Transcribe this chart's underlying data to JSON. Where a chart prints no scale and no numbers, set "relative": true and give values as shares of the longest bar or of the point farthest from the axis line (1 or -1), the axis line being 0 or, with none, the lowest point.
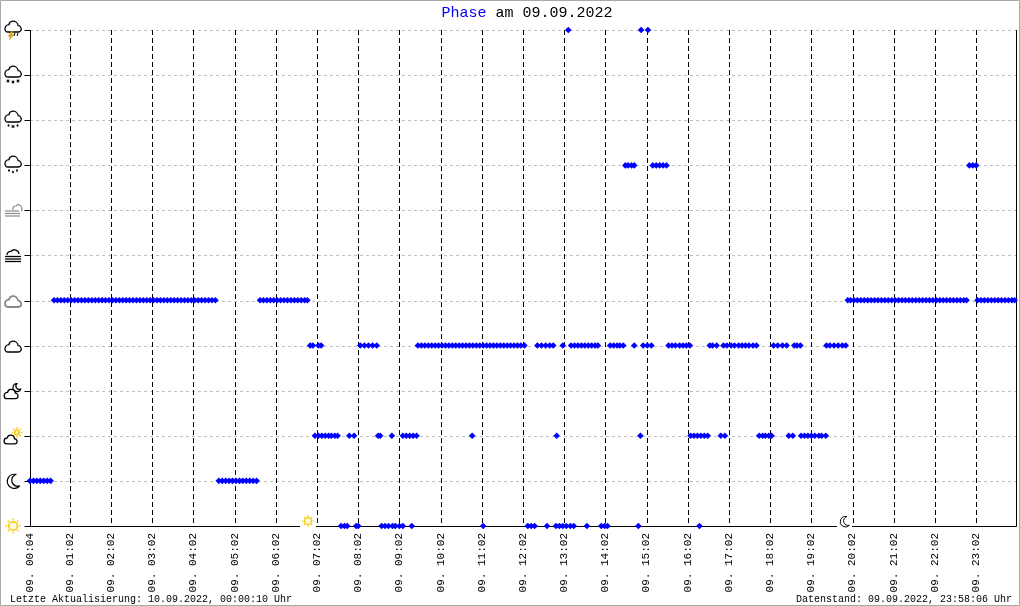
{
  "chart_data": {
    "type": "scatter",
    "title": "am 09.09.2022",
    "relative": true,
    "series": [
      {
        "name": "Phase",
        "color": "#0000ff",
        "x": [
          "2022-09-09T00:04",
          "2022-09-09T00:09",
          "2022-09-09T00:14",
          "2022-09-09T00:19",
          "2022-09-09T00:24",
          "2022-09-09T00:29",
          "2022-09-09T00:34",
          "2022-09-09T00:39",
          "2022-09-09T00:44",
          "2022-09-09T00:49",
          "2022-09-09T00:54",
          "2022-09-09T00:59",
          "2022-09-09T01:04",
          "2022-09-09T01:09",
          "2022-09-09T01:14",
          "2022-09-09T01:19",
          "2022-09-09T01:24",
          "2022-09-09T01:29",
          "2022-09-09T01:34",
          "2022-09-09T01:39",
          "2022-09-09T01:44",
          "2022-09-09T01:49",
          "2022-09-09T01:54",
          "2022-09-09T01:59",
          "2022-09-09T02:04",
          "2022-09-09T02:09",
          "2022-09-09T02:14",
          "2022-09-09T02:19",
          "2022-09-09T02:24",
          "2022-09-09T02:29",
          "2022-09-09T02:34",
          "2022-09-09T02:39",
          "2022-09-09T02:44",
          "2022-09-09T02:49",
          "2022-09-09T02:54",
          "2022-09-09T02:59",
          "2022-09-09T03:04",
          "2022-09-09T03:09",
          "2022-09-09T03:14",
          "2022-09-09T03:19",
          "2022-09-09T03:24",
          "2022-09-09T03:29",
          "2022-09-09T03:34",
          "2022-09-09T03:39",
          "2022-09-09T03:44",
          "2022-09-09T03:49",
          "2022-09-09T03:54",
          "2022-09-09T03:59",
          "2022-09-09T04:04",
          "2022-09-09T04:09",
          "2022-09-09T04:14",
          "2022-09-09T04:19",
          "2022-09-09T04:24",
          "2022-09-09T04:29",
          "2022-09-09T04:34",
          "2022-09-09T04:39",
          "2022-09-09T04:44",
          "2022-09-09T04:49",
          "2022-09-09T04:54",
          "2022-09-09T04:59",
          "2022-09-09T05:04",
          "2022-09-09T05:09",
          "2022-09-09T05:14",
          "2022-09-09T05:19",
          "2022-09-09T05:24",
          "2022-09-09T05:29",
          "2022-09-09T05:34",
          "2022-09-09T05:39",
          "2022-09-09T05:44",
          "2022-09-09T05:49",
          "2022-09-09T05:54",
          "2022-09-09T05:59",
          "2022-09-09T06:04",
          "2022-09-09T06:09",
          "2022-09-09T06:14",
          "2022-09-09T06:19",
          "2022-09-09T06:24",
          "2022-09-09T06:29",
          "2022-09-09T06:34",
          "2022-09-09T06:39",
          "2022-09-09T06:44",
          "2022-09-09T06:48",
          "2022-09-09T06:52",
          "2022-09-09T06:56",
          "2022-09-09T07:04",
          "2022-09-09T07:08",
          "2022-09-09T06:59",
          "2022-09-09T07:04",
          "2022-09-09T07:09",
          "2022-09-09T07:14",
          "2022-09-09T07:19",
          "2022-09-09T07:23",
          "2022-09-09T07:28",
          "2022-09-09T07:32",
          "2022-09-09T07:37",
          "2022-09-09T07:42",
          "2022-09-09T07:46",
          "2022-09-09T07:49",
          "2022-09-09T07:56",
          "2022-09-09T07:59",
          "2022-09-09T08:02",
          "2022-09-09T08:05",
          "2022-09-09T08:11",
          "2022-09-09T08:17",
          "2022-09-09T08:23",
          "2022-09-09T08:29",
          "2022-09-09T08:31",
          "2022-09-09T08:34",
          "2022-09-09T08:36",
          "2022-09-09T08:41",
          "2022-09-09T08:46",
          "2022-09-09T08:52",
          "2022-09-09T08:56",
          "2022-09-09T09:02",
          "2022-09-09T09:07",
          "2022-09-09T08:51",
          "2022-09-09T09:07",
          "2022-09-09T09:12",
          "2022-09-09T09:17",
          "2022-09-09T09:22",
          "2022-09-09T09:27",
          "2022-09-09T09:20",
          "2022-09-09T09:29",
          "2022-09-09T09:34",
          "2022-09-09T09:39",
          "2022-09-09T09:44",
          "2022-09-09T09:49",
          "2022-09-09T09:54",
          "2022-09-09T09:59",
          "2022-09-09T10:04",
          "2022-09-09T10:09",
          "2022-09-09T10:14",
          "2022-09-09T10:19",
          "2022-09-09T10:24",
          "2022-09-09T10:29",
          "2022-09-09T10:34",
          "2022-09-09T10:39",
          "2022-09-09T10:44",
          "2022-09-09T10:49",
          "2022-09-09T10:54",
          "2022-09-09T10:59",
          "2022-09-09T11:04",
          "2022-09-09T11:09",
          "2022-09-09T11:14",
          "2022-09-09T11:19",
          "2022-09-09T11:24",
          "2022-09-09T11:29",
          "2022-09-09T11:34",
          "2022-09-09T11:39",
          "2022-09-09T11:44",
          "2022-09-09T11:49",
          "2022-09-09T11:54",
          "2022-09-09T11:59",
          "2022-09-09T12:04",
          "2022-09-09T10:48",
          "2022-09-09T11:04",
          "2022-09-09T12:09",
          "2022-09-09T12:14",
          "2022-09-09T12:19",
          "2022-09-09T12:23",
          "2022-09-09T12:29",
          "2022-09-09T12:35",
          "2022-09-09T12:41",
          "2022-09-09T12:46",
          "2022-09-09T12:37",
          "2022-09-09T12:51",
          "2022-09-09T12:50",
          "2022-09-09T12:55",
          "2022-09-09T13:00",
          "2022-09-09T13:05",
          "2022-09-09T13:11",
          "2022-09-09T13:16",
          "2022-09-09T13:00",
          "2022-09-09T13:08",
          "2022-09-09T13:12",
          "2022-09-09T13:17",
          "2022-09-09T13:22",
          "2022-09-09T13:27",
          "2022-09-09T13:32",
          "2022-09-09T13:37",
          "2022-09-09T13:42",
          "2022-09-09T13:47",
          "2022-09-09T13:51",
          "2022-09-09T13:35",
          "2022-09-09T13:56",
          "2022-09-09T14:01",
          "2022-09-09T14:05",
          "2022-09-09T14:09",
          "2022-09-09T14:14",
          "2022-09-09T14:19",
          "2022-09-09T14:23",
          "2022-09-09T14:28",
          "2022-09-09T14:31",
          "2022-09-09T14:35",
          "2022-09-09T14:40",
          "2022-09-09T14:44",
          "2022-09-09T14:44",
          "2022-09-09T14:50",
          "2022-09-09T14:53",
          "2022-09-09T14:54",
          "2022-09-09T15:04",
          "2022-09-09T14:57",
          "2022-09-09T15:03",
          "2022-09-09T15:09",
          "2022-09-09T15:11",
          "2022-09-09T15:16",
          "2022-09-09T15:21",
          "2022-09-09T15:26",
          "2022-09-09T15:31",
          "2022-09-09T15:34",
          "2022-09-09T15:39",
          "2022-09-09T15:44",
          "2022-09-09T15:50",
          "2022-09-09T15:55",
          "2022-09-09T16:00",
          "2022-09-09T16:05",
          "2022-09-09T16:06",
          "2022-09-09T16:11",
          "2022-09-09T16:16",
          "2022-09-09T16:21",
          "2022-09-09T16:26",
          "2022-09-09T16:31",
          "2022-09-09T16:19",
          "2022-09-09T16:34",
          "2022-09-09T16:38",
          "2022-09-09T16:44",
          "2022-09-09T16:50",
          "2022-09-09T16:56",
          "2022-09-09T16:54",
          "2022-09-09T16:59",
          "2022-09-09T17:05",
          "2022-09-09T17:10",
          "2022-09-09T17:16",
          "2022-09-09T17:21",
          "2022-09-09T17:26",
          "2022-09-09T17:31",
          "2022-09-09T17:37",
          "2022-09-09T17:42",
          "2022-09-09T17:46",
          "2022-09-09T17:51",
          "2022-09-09T17:55",
          "2022-09-09T18:00",
          "2022-09-09T18:04",
          "2022-09-09T18:07",
          "2022-09-09T18:13",
          "2022-09-09T18:20",
          "2022-09-09T18:26",
          "2022-09-09T18:29",
          "2022-09-09T18:35",
          "2022-09-09T18:37",
          "2022-09-09T18:41",
          "2022-09-09T18:46",
          "2022-09-09T18:47",
          "2022-09-09T18:52",
          "2022-09-09T18:57",
          "2022-09-09T19:02",
          "2022-09-09T19:07",
          "2022-09-09T19:13",
          "2022-09-09T19:17",
          "2022-09-09T19:23",
          "2022-09-09T19:24",
          "2022-09-09T19:29",
          "2022-09-09T19:35",
          "2022-09-09T19:41",
          "2022-09-09T19:47",
          "2022-09-09T19:52",
          "2022-09-09T19:55",
          "2022-09-09T19:59",
          "2022-09-09T20:04",
          "2022-09-09T20:09",
          "2022-09-09T20:14",
          "2022-09-09T20:19",
          "2022-09-09T20:24",
          "2022-09-09T20:29",
          "2022-09-09T20:34",
          "2022-09-09T20:39",
          "2022-09-09T20:44",
          "2022-09-09T20:49",
          "2022-09-09T20:54",
          "2022-09-09T20:59",
          "2022-09-09T21:04",
          "2022-09-09T21:09",
          "2022-09-09T21:14",
          "2022-09-09T21:19",
          "2022-09-09T21:24",
          "2022-09-09T21:29",
          "2022-09-09T21:34",
          "2022-09-09T21:39",
          "2022-09-09T21:44",
          "2022-09-09T21:49",
          "2022-09-09T21:54",
          "2022-09-09T21:59",
          "2022-09-09T22:04",
          "2022-09-09T22:09",
          "2022-09-09T22:14",
          "2022-09-09T22:19",
          "2022-09-09T22:24",
          "2022-09-09T22:29",
          "2022-09-09T22:34",
          "2022-09-09T22:39",
          "2022-09-09T22:44",
          "2022-09-09T22:48",
          "2022-09-09T22:52",
          "2022-09-09T22:57",
          "2022-09-09T23:02",
          "2022-09-09T23:04",
          "2022-09-09T23:09",
          "2022-09-09T23:14",
          "2022-09-09T23:19",
          "2022-09-09T23:24",
          "2022-09-09T23:29",
          "2022-09-09T23:34",
          "2022-09-09T23:39",
          "2022-09-09T23:44",
          "2022-09-09T23:49",
          "2022-09-09T23:54",
          "2022-09-09T23:58"
        ],
        "values": [
          0.091,
          0.091,
          0.091,
          0.091,
          0.091,
          0.091,
          0.091,
          0.455,
          0.455,
          0.455,
          0.455,
          0.455,
          0.455,
          0.455,
          0.455,
          0.455,
          0.455,
          0.455,
          0.455,
          0.455,
          0.455,
          0.455,
          0.455,
          0.455,
          0.455,
          0.455,
          0.455,
          0.455,
          0.455,
          0.455,
          0.455,
          0.455,
          0.455,
          0.455,
          0.455,
          0.455,
          0.455,
          0.455,
          0.455,
          0.455,
          0.455,
          0.455,
          0.455,
          0.455,
          0.455,
          0.455,
          0.455,
          0.455,
          0.455,
          0.455,
          0.455,
          0.455,
          0.455,
          0.455,
          0.455,
          0.091,
          0.091,
          0.091,
          0.091,
          0.091,
          0.091,
          0.091,
          0.091,
          0.091,
          0.091,
          0.091,
          0.091,
          0.455,
          0.455,
          0.455,
          0.455,
          0.455,
          0.455,
          0.455,
          0.455,
          0.455,
          0.455,
          0.455,
          0.455,
          0.455,
          0.455,
          0.455,
          0.364,
          0.364,
          0.364,
          0.364,
          0.182,
          0.182,
          0.182,
          0.182,
          0.182,
          0.182,
          0.182,
          0.182,
          0,
          0,
          0,
          0.182,
          0.182,
          0,
          0,
          0.364,
          0.364,
          0.364,
          0.364,
          0.364,
          0.182,
          0.182,
          0,
          0,
          0,
          0,
          0,
          0,
          0,
          0.182,
          0.182,
          0.182,
          0.182,
          0.182,
          0.182,
          0,
          0.364,
          0.364,
          0.364,
          0.364,
          0.364,
          0.364,
          0.364,
          0.364,
          0.364,
          0.364,
          0.364,
          0.364,
          0.364,
          0.364,
          0.364,
          0.364,
          0.364,
          0.364,
          0.364,
          0.364,
          0.364,
          0.364,
          0.364,
          0.364,
          0.364,
          0.364,
          0.364,
          0.364,
          0.364,
          0.364,
          0.364,
          0.364,
          0.182,
          0,
          0,
          0,
          0,
          0.364,
          0.364,
          0.364,
          0.364,
          0.364,
          0,
          0.182,
          0,
          0,
          0,
          0,
          0,
          0,
          0.364,
          1,
          0.364,
          0.364,
          0.364,
          0.364,
          0.364,
          0.364,
          0.364,
          0.364,
          0.364,
          0,
          0,
          0,
          0,
          0.364,
          0.364,
          0.364,
          0.364,
          0.364,
          0.727,
          0.727,
          0.727,
          0.727,
          0.364,
          0,
          0.182,
          1,
          1,
          0.364,
          0.364,
          0.364,
          0.727,
          0.727,
          0.727,
          0.727,
          0.727,
          0.364,
          0.364,
          0.364,
          0.364,
          0.364,
          0.364,
          0.364,
          0.182,
          0.182,
          0.182,
          0.182,
          0.182,
          0.182,
          0,
          0.364,
          0.364,
          0.364,
          0.182,
          0.182,
          0.364,
          0.364,
          0.364,
          0.364,
          0.364,
          0.364,
          0.364,
          0.364,
          0.364,
          0.364,
          0.182,
          0.182,
          0.182,
          0.182,
          0.182,
          0.364,
          0.364,
          0.364,
          0.364,
          0.182,
          0.182,
          0.364,
          0.364,
          0.364,
          0.182,
          0.182,
          0.182,
          0.182,
          0.182,
          0.182,
          0.182,
          0.182,
          0.364,
          0.364,
          0.364,
          0.364,
          0.364,
          0.364,
          0.455,
          0.455,
          0.455,
          0.455,
          0.455,
          0.455,
          0.455,
          0.455,
          0.455,
          0.455,
          0.455,
          0.455,
          0.455,
          0.455,
          0.455,
          0.455,
          0.455,
          0.455,
          0.455,
          0.455,
          0.455,
          0.455,
          0.455,
          0.455,
          0.455,
          0.455,
          0.455,
          0.455,
          0.455,
          0.455,
          0.455,
          0.455,
          0.455,
          0.455,
          0.455,
          0.455,
          0.727,
          0.727,
          0.727,
          0.455,
          0.455,
          0.455,
          0.455,
          0.455,
          0.455,
          0.455,
          0.455,
          0.455,
          0.455,
          0.455,
          0.455
        ]
      }
    ],
    "xlim": [
      "2022-09-09T00:04",
      "2022-09-10T00:00"
    ],
    "xticks": [
      {
        "value": "2022-09-09T00:04",
        "label": "09. 00:04"
      },
      {
        "value": "2022-09-09T01:02",
        "label": "09. 01:02"
      },
      {
        "value": "2022-09-09T02:02",
        "label": "09. 02:02"
      },
      {
        "value": "2022-09-09T03:02",
        "label": "09. 03:02"
      },
      {
        "value": "2022-09-09T04:02",
        "label": "09. 04:02"
      },
      {
        "value": "2022-09-09T05:02",
        "label": "09. 05:02"
      },
      {
        "value": "2022-09-09T06:02",
        "label": "09. 06:02"
      },
      {
        "value": "2022-09-09T07:02",
        "label": "09. 07:02"
      },
      {
        "value": "2022-09-09T08:02",
        "label": "09. 08:02"
      },
      {
        "value": "2022-09-09T09:02",
        "label": "09. 09:02"
      },
      {
        "value": "2022-09-09T10:02",
        "label": "09. 10:02"
      },
      {
        "value": "2022-09-09T11:02",
        "label": "09. 11:02"
      },
      {
        "value": "2022-09-09T12:02",
        "label": "09. 12:02"
      },
      {
        "value": "2022-09-09T13:02",
        "label": "09. 13:02"
      },
      {
        "value": "2022-09-09T14:02",
        "label": "09. 14:02"
      },
      {
        "value": "2022-09-09T15:02",
        "label": "09. 15:02"
      },
      {
        "value": "2022-09-09T16:02",
        "label": "09. 16:02"
      },
      {
        "value": "2022-09-09T17:02",
        "label": "09. 17:02"
      },
      {
        "value": "2022-09-09T18:02",
        "label": "09. 18:02"
      },
      {
        "value": "2022-09-09T19:02",
        "label": "09. 19:02"
      },
      {
        "value": "2022-09-09T20:02",
        "label": "09. 20:02"
      },
      {
        "value": "2022-09-09T21:02",
        "label": "09. 21:02"
      },
      {
        "value": "2022-09-09T22:02",
        "label": "09. 22:02"
      },
      {
        "value": "2022-09-09T23:02",
        "label": "09. 23:02"
      }
    ],
    "grid": true,
    "legend": "top",
    "marker": "diamond",
    "annotations": [
      "Letzte Aktualisierung: 10.09.2022, 00:00:10 Uhr",
      "Datenstand: 09.09.2022, 23:58:06 Uhr"
    ]
  }
}
